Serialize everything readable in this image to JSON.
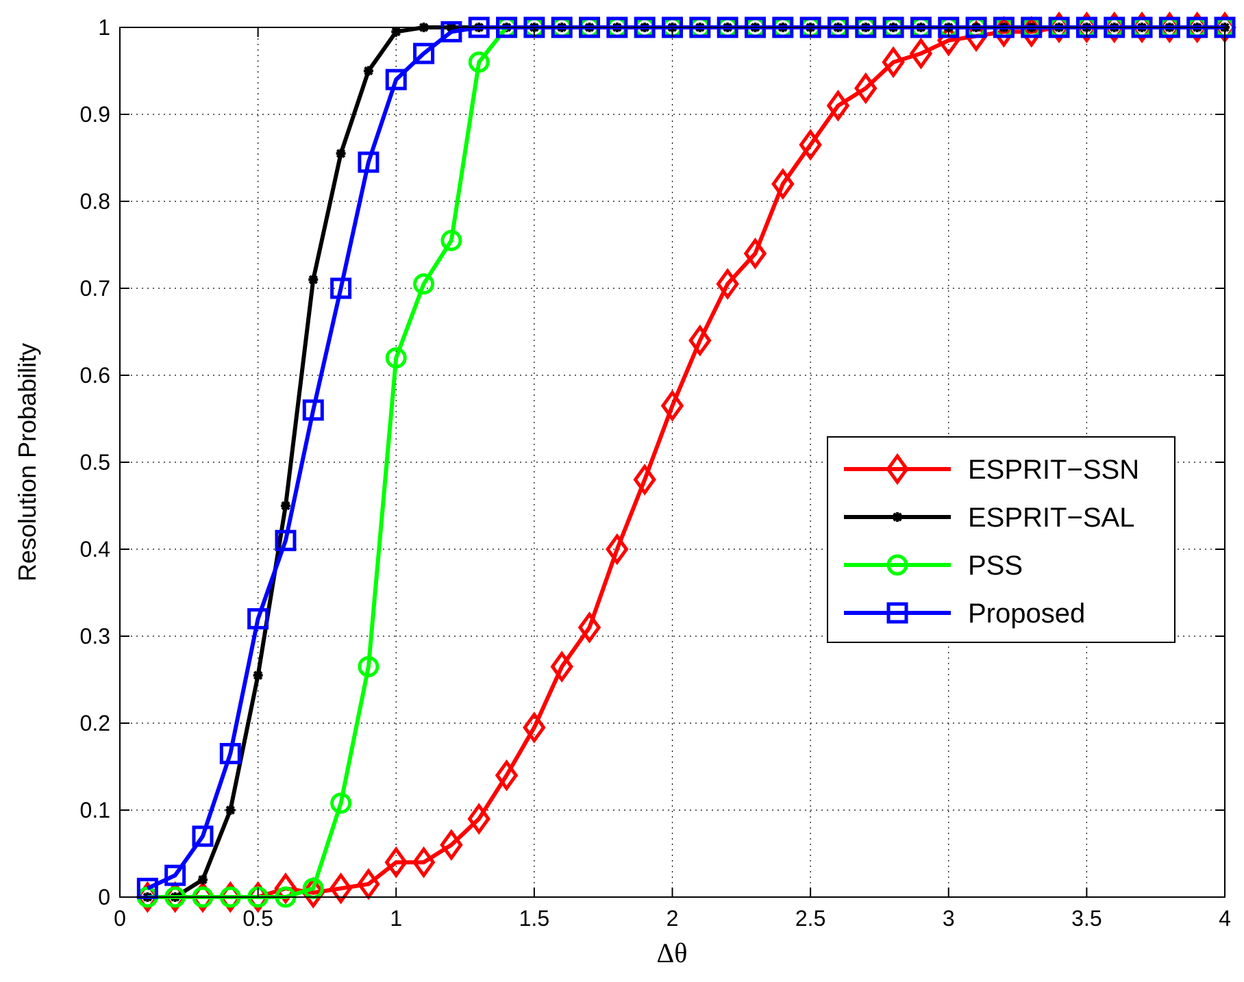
{
  "chart_data": {
    "type": "line",
    "title": "",
    "xlabel": "Δθ",
    "ylabel": "Resolution Probability",
    "xlim": [
      0,
      4
    ],
    "ylim": [
      0,
      1
    ],
    "xticks": [
      0,
      0.5,
      1,
      1.5,
      2,
      2.5,
      3,
      3.5,
      4
    ],
    "xtick_labels": [
      "0",
      "0.5",
      "1",
      "1.5",
      "2",
      "2.5",
      "3",
      "3.5",
      "4"
    ],
    "yticks": [
      0,
      0.1,
      0.2,
      0.3,
      0.4,
      0.5,
      0.6,
      0.7,
      0.8,
      0.9,
      1
    ],
    "ytick_labels": [
      "0",
      "0.1",
      "0.2",
      "0.3",
      "0.4",
      "0.5",
      "0.6",
      "0.7",
      "0.8",
      "0.9",
      "1"
    ],
    "grid": true,
    "legend_position": "center-right",
    "x": [
      0.1,
      0.2,
      0.3,
      0.4,
      0.5,
      0.6,
      0.7,
      0.8,
      0.9,
      1.0,
      1.1,
      1.2,
      1.3,
      1.4,
      1.5,
      1.6,
      1.7,
      1.8,
      1.9,
      2.0,
      2.1,
      2.2,
      2.3,
      2.4,
      2.5,
      2.6,
      2.7,
      2.8,
      2.9,
      3.0,
      3.1,
      3.2,
      3.3,
      3.4,
      3.5,
      3.6,
      3.7,
      3.8,
      3.9,
      4.0
    ],
    "series": [
      {
        "name": "ESPRIT−SSN",
        "color": "#ff0000",
        "marker": "diamond",
        "values": [
          0,
          0,
          0,
          0,
          0,
          0.01,
          0.005,
          0.01,
          0.015,
          0.04,
          0.04,
          0.06,
          0.09,
          0.14,
          0.195,
          0.265,
          0.31,
          0.4,
          0.48,
          0.565,
          0.64,
          0.705,
          0.74,
          0.82,
          0.865,
          0.91,
          0.93,
          0.96,
          0.97,
          0.985,
          0.99,
          0.995,
          0.995,
          1,
          1,
          1,
          1,
          1,
          1,
          1
        ]
      },
      {
        "name": "ESPRIT−SAL",
        "color": "#000000",
        "marker": "star",
        "values": [
          0,
          0,
          0.02,
          0.1,
          0.255,
          0.45,
          0.71,
          0.855,
          0.95,
          0.995,
          1,
          1,
          1,
          1,
          1,
          1,
          1,
          1,
          1,
          1,
          1,
          1,
          1,
          1,
          1,
          1,
          1,
          1,
          1,
          1,
          1,
          1,
          1,
          1,
          1,
          1,
          1,
          1,
          1,
          1
        ]
      },
      {
        "name": "PSS",
        "color": "#00ff00",
        "marker": "circle",
        "values": [
          0,
          0,
          0,
          0,
          0,
          0,
          0.01,
          0.108,
          0.265,
          0.62,
          0.705,
          0.755,
          0.96,
          1,
          1,
          1,
          1,
          1,
          1,
          1,
          1,
          1,
          1,
          1,
          1,
          1,
          1,
          1,
          1,
          1,
          1,
          1,
          1,
          1,
          1,
          1,
          1,
          1,
          1,
          1
        ]
      },
      {
        "name": "Proposed",
        "color": "#0000ff",
        "marker": "square",
        "values": [
          0.01,
          0.025,
          0.07,
          0.165,
          0.32,
          0.41,
          0.56,
          0.7,
          0.845,
          0.94,
          0.97,
          0.995,
          1,
          1,
          1,
          1,
          1,
          1,
          1,
          1,
          1,
          1,
          1,
          1,
          1,
          1,
          1,
          1,
          1,
          1,
          1,
          1,
          1,
          1,
          1,
          1,
          1,
          1,
          1,
          1
        ]
      }
    ]
  }
}
